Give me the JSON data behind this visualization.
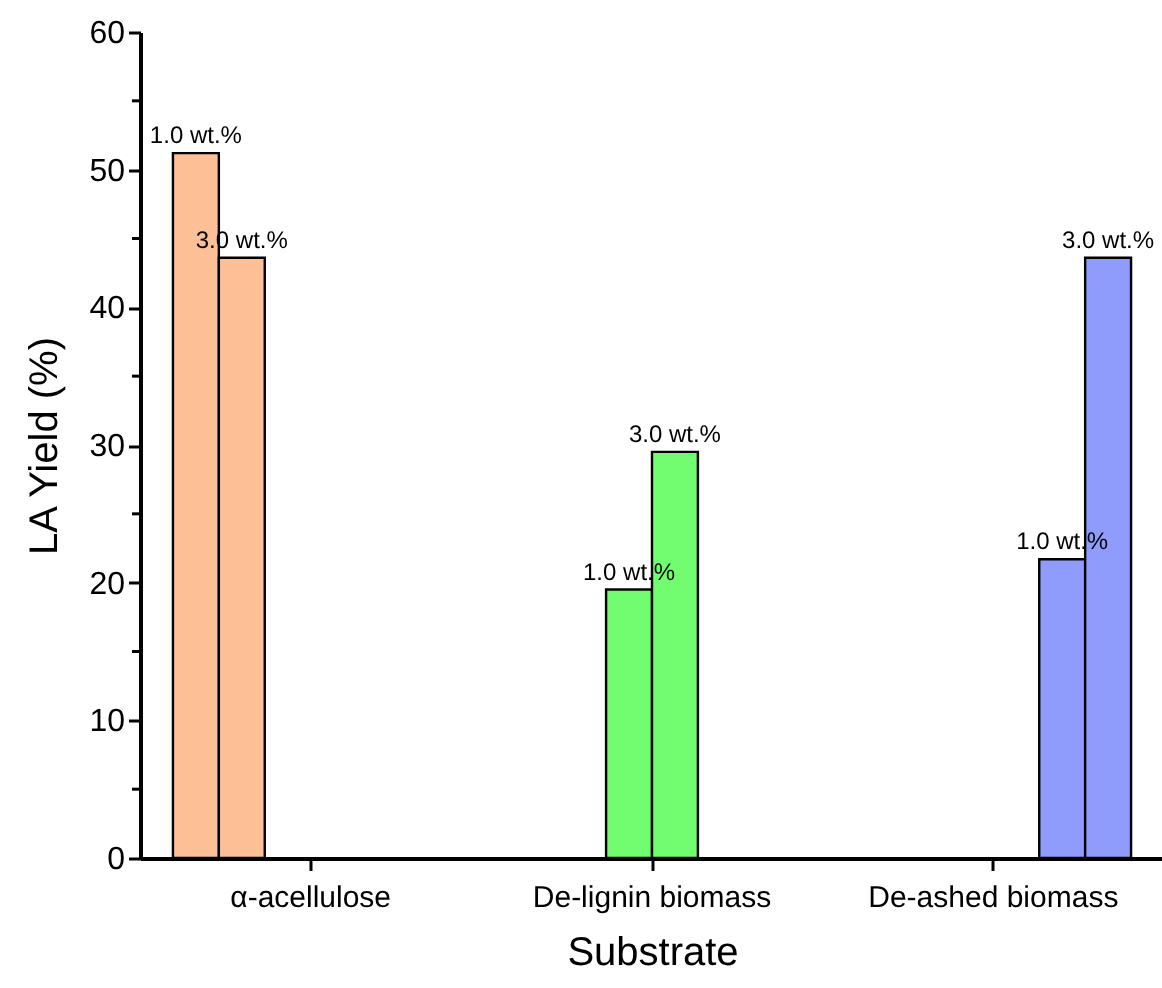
{
  "chart_data": {
    "type": "bar",
    "xlabel": "Substrate",
    "ylabel": "LA Yield (%)",
    "categories": [
      "α-acellulose",
      "De-lignin biomass",
      "De-ashed biomass"
    ],
    "series": [
      {
        "name": "1.0 wt.%",
        "color": "#fdbf96",
        "values": [
          51.2,
          null,
          null
        ]
      },
      {
        "name": "3.0 wt.%",
        "color": "#fdbf96",
        "values": [
          43.6,
          null,
          null
        ]
      },
      {
        "name": "1.0 wt.%",
        "color": "#72fc6f",
        "values": [
          null,
          19.5,
          null
        ]
      },
      {
        "name": "3.0 wt.%",
        "color": "#72fc6f",
        "values": [
          null,
          29.5,
          null
        ]
      },
      {
        "name": "1.0 wt.%",
        "color": "#8f9cfc",
        "values": [
          null,
          null,
          21.7
        ]
      },
      {
        "name": "3.0 wt.%",
        "color": "#8f9cfc",
        "values": [
          null,
          null,
          43.6
        ]
      }
    ],
    "ylim": [
      0,
      60
    ],
    "yticks": [
      0,
      {
        "value": 5,
        "label": null
      },
      10,
      {
        "value": 15,
        "label": null
      },
      20,
      {
        "value": 25,
        "label": null
      },
      30,
      {
        "value": 35,
        "label": null
      },
      40,
      {
        "value": 45,
        "label": null
      },
      50,
      {
        "value": 55,
        "label": null
      },
      60
    ],
    "grid": false
  }
}
